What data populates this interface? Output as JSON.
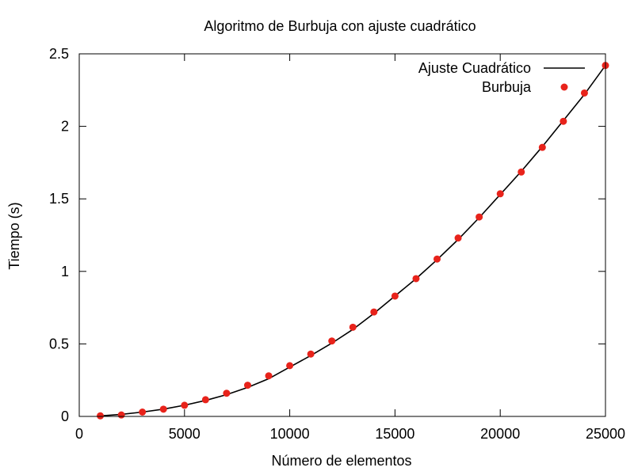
{
  "chart_data": {
    "type": "scatter",
    "title": "Algoritmo de Burbuja con ajuste cuadrático",
    "xlabel": "Número de elementos",
    "ylabel": "Tiempo (s)",
    "xlim": [
      0,
      25000
    ],
    "ylim": [
      0,
      2.5
    ],
    "xticks": [
      "0",
      "5000",
      "10000",
      "15000",
      "20000",
      "25000"
    ],
    "yticks": [
      "0",
      "0.5",
      "1",
      "1.5",
      "2",
      "2.5"
    ],
    "grid": false,
    "legend_position": "top-right",
    "series": [
      {
        "name": "Ajuste Cuadrático",
        "kind": "line",
        "color": "#000000",
        "x": [
          1000,
          2000,
          3000,
          4000,
          5000,
          6000,
          7000,
          8000,
          9000,
          10000,
          11000,
          12000,
          13000,
          14000,
          15000,
          16000,
          17000,
          18000,
          19000,
          20000,
          21000,
          22000,
          23000,
          24000,
          25000
        ],
        "y": [
          0.004,
          0.014,
          0.03,
          0.05,
          0.077,
          0.11,
          0.15,
          0.2,
          0.26,
          0.34,
          0.42,
          0.505,
          0.6,
          0.71,
          0.83,
          0.95,
          1.08,
          1.22,
          1.37,
          1.53,
          1.69,
          1.86,
          2.04,
          2.22,
          2.42
        ]
      },
      {
        "name": "Burbuja",
        "kind": "points",
        "color": "#e8231b",
        "x": [
          1000,
          2000,
          3000,
          4000,
          5000,
          6000,
          7000,
          8000,
          9000,
          10000,
          11000,
          12000,
          13000,
          14000,
          15000,
          16000,
          17000,
          18000,
          19000,
          20000,
          21000,
          22000,
          23000,
          24000,
          25000
        ],
        "y": [
          0.004,
          0.01,
          0.03,
          0.05,
          0.077,
          0.115,
          0.16,
          0.215,
          0.28,
          0.35,
          0.43,
          0.52,
          0.615,
          0.72,
          0.83,
          0.95,
          1.085,
          1.23,
          1.375,
          1.535,
          1.685,
          1.855,
          2.035,
          2.23,
          2.42
        ]
      }
    ]
  }
}
